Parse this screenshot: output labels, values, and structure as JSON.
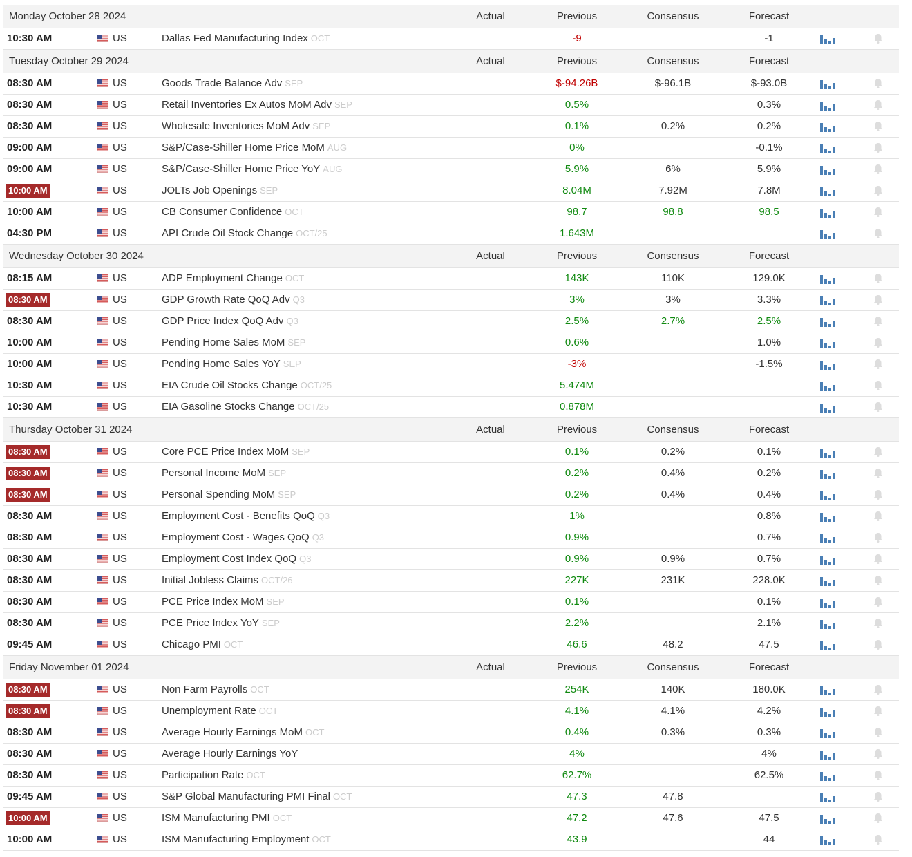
{
  "days": [
    {
      "title": "Monday October 28 2024",
      "columns": [
        "Actual",
        "Previous",
        "Consensus",
        "Forecast"
      ],
      "events": [
        {
          "time": "10:30 AM",
          "country": "US",
          "event": "Dallas Fed Manufacturing Index",
          "period": "OCT",
          "previous": "-9",
          "previous_color": "#c00000",
          "forecast": "-1"
        }
      ]
    },
    {
      "title": "Tuesday October 29 2024",
      "columns": [
        "Actual",
        "Previous",
        "Consensus",
        "Forecast"
      ],
      "events": [
        {
          "time": "08:30 AM",
          "country": "US",
          "event": "Goods Trade Balance Adv",
          "period": "SEP",
          "previous": "$-94.26B",
          "previous_color": "#c00000",
          "consensus": "$-96.1B",
          "forecast": "$-93.0B"
        },
        {
          "time": "08:30 AM",
          "country": "US",
          "event": "Retail Inventories Ex Autos MoM Adv",
          "period": "SEP",
          "previous": "0.5%",
          "forecast": "0.3%"
        },
        {
          "time": "08:30 AM",
          "country": "US",
          "event": "Wholesale Inventories MoM Adv",
          "period": "SEP",
          "previous": "0.1%",
          "consensus": "0.2%",
          "forecast": "0.2%"
        },
        {
          "time": "09:00 AM",
          "country": "US",
          "event": "S&P/Case-Shiller Home Price MoM",
          "period": "AUG",
          "previous": "0%",
          "forecast": "-0.1%"
        },
        {
          "time": "09:00 AM",
          "country": "US",
          "event": "S&P/Case-Shiller Home Price YoY",
          "period": "AUG",
          "previous": "5.9%",
          "consensus": "6%",
          "forecast": "5.9%"
        },
        {
          "time": "10:00 AM",
          "important": true,
          "country": "US",
          "event": "JOLTs Job Openings",
          "period": "SEP",
          "previous": "8.04M",
          "consensus": "7.92M",
          "forecast": "7.8M"
        },
        {
          "time": "10:00 AM",
          "country": "US",
          "event": "CB Consumer Confidence",
          "period": "OCT",
          "previous": "98.7",
          "consensus": "98.8",
          "consensus_color": "#118a11",
          "forecast": "98.5",
          "forecast_color": "#118a11"
        },
        {
          "time": "04:30 PM",
          "country": "US",
          "event": "API Crude Oil Stock Change",
          "period": "OCT/25",
          "previous": "1.643M"
        }
      ]
    },
    {
      "title": "Wednesday October 30 2024",
      "columns": [
        "Actual",
        "Previous",
        "Consensus",
        "Forecast"
      ],
      "events": [
        {
          "time": "08:15 AM",
          "country": "US",
          "event": "ADP Employment Change",
          "period": "OCT",
          "previous": "143K",
          "consensus": "110K",
          "forecast": "129.0K"
        },
        {
          "time": "08:30 AM",
          "important": true,
          "country": "US",
          "event": "GDP Growth Rate QoQ Adv",
          "period": "Q3",
          "previous": "3%",
          "consensus": "3%",
          "forecast": "3.3%"
        },
        {
          "time": "08:30 AM",
          "country": "US",
          "event": "GDP Price Index QoQ Adv",
          "period": "Q3",
          "previous": "2.5%",
          "consensus": "2.7%",
          "consensus_color": "#118a11",
          "forecast": "2.5%",
          "forecast_color": "#118a11"
        },
        {
          "time": "10:00 AM",
          "country": "US",
          "event": "Pending Home Sales MoM",
          "period": "SEP",
          "previous": "0.6%",
          "forecast": "1.0%"
        },
        {
          "time": "10:00 AM",
          "country": "US",
          "event": "Pending Home Sales YoY",
          "period": "SEP",
          "previous": "-3%",
          "previous_color": "#c00000",
          "forecast": "-1.5%"
        },
        {
          "time": "10:30 AM",
          "country": "US",
          "event": "EIA Crude Oil Stocks Change",
          "period": "OCT/25",
          "previous": "5.474M"
        },
        {
          "time": "10:30 AM",
          "country": "US",
          "event": "EIA Gasoline Stocks Change",
          "period": "OCT/25",
          "previous": "0.878M"
        }
      ]
    },
    {
      "title": "Thursday October 31 2024",
      "columns": [
        "Actual",
        "Previous",
        "Consensus",
        "Forecast"
      ],
      "events": [
        {
          "time": "08:30 AM",
          "important": true,
          "country": "US",
          "event": "Core PCE Price Index MoM",
          "period": "SEP",
          "previous": "0.1%",
          "consensus": "0.2%",
          "forecast": "0.1%"
        },
        {
          "time": "08:30 AM",
          "important": true,
          "country": "US",
          "event": "Personal Income MoM",
          "period": "SEP",
          "previous": "0.2%",
          "consensus": "0.4%",
          "forecast": "0.2%"
        },
        {
          "time": "08:30 AM",
          "important": true,
          "country": "US",
          "event": "Personal Spending MoM",
          "period": "SEP",
          "previous": "0.2%",
          "consensus": "0.4%",
          "forecast": "0.4%"
        },
        {
          "time": "08:30 AM",
          "country": "US",
          "event": "Employment Cost - Benefits QoQ",
          "period": "Q3",
          "previous": "1%",
          "forecast": "0.8%"
        },
        {
          "time": "08:30 AM",
          "country": "US",
          "event": "Employment Cost - Wages QoQ",
          "period": "Q3",
          "previous": "0.9%",
          "forecast": "0.7%"
        },
        {
          "time": "08:30 AM",
          "country": "US",
          "event": "Employment Cost Index QoQ",
          "period": "Q3",
          "previous": "0.9%",
          "consensus": "0.9%",
          "forecast": "0.7%"
        },
        {
          "time": "08:30 AM",
          "country": "US",
          "event": "Initial Jobless Claims",
          "period": "OCT/26",
          "previous": "227K",
          "consensus": "231K",
          "forecast": "228.0K"
        },
        {
          "time": "08:30 AM",
          "country": "US",
          "event": "PCE Price Index MoM",
          "period": "SEP",
          "previous": "0.1%",
          "forecast": "0.1%"
        },
        {
          "time": "08:30 AM",
          "country": "US",
          "event": "PCE Price Index YoY",
          "period": "SEP",
          "previous": "2.2%",
          "forecast": "2.1%"
        },
        {
          "time": "09:45 AM",
          "country": "US",
          "event": "Chicago PMI",
          "period": "OCT",
          "previous": "46.6",
          "consensus": "48.2",
          "forecast": "47.5"
        }
      ]
    },
    {
      "title": "Friday November 01 2024",
      "columns": [
        "Actual",
        "Previous",
        "Consensus",
        "Forecast"
      ],
      "events": [
        {
          "time": "08:30 AM",
          "important": true,
          "country": "US",
          "event": "Non Farm Payrolls",
          "period": "OCT",
          "previous": "254K",
          "consensus": "140K",
          "forecast": "180.0K"
        },
        {
          "time": "08:30 AM",
          "important": true,
          "country": "US",
          "event": "Unemployment Rate",
          "period": "OCT",
          "previous": "4.1%",
          "consensus": "4.1%",
          "forecast": "4.2%"
        },
        {
          "time": "08:30 AM",
          "country": "US",
          "event": "Average Hourly Earnings MoM",
          "period": "OCT",
          "previous": "0.4%",
          "consensus": "0.3%",
          "forecast": "0.3%"
        },
        {
          "time": "08:30 AM",
          "country": "US",
          "event": "Average Hourly Earnings YoY",
          "previous": "4%",
          "forecast": "4%"
        },
        {
          "time": "08:30 AM",
          "country": "US",
          "event": "Participation Rate",
          "period": "OCT",
          "previous": "62.7%",
          "forecast": "62.5%"
        },
        {
          "time": "09:45 AM",
          "country": "US",
          "event": "S&P Global Manufacturing PMI Final",
          "period": "OCT",
          "previous": "47.3",
          "consensus": "47.8"
        },
        {
          "time": "10:00 AM",
          "important": true,
          "country": "US",
          "event": "ISM Manufacturing PMI",
          "period": "OCT",
          "previous": "47.2",
          "consensus": "47.6",
          "forecast": "47.5"
        },
        {
          "time": "10:00 AM",
          "country": "US",
          "event": "ISM Manufacturing Employment",
          "period": "OCT",
          "previous": "43.9",
          "forecast": "44"
        }
      ]
    }
  ]
}
